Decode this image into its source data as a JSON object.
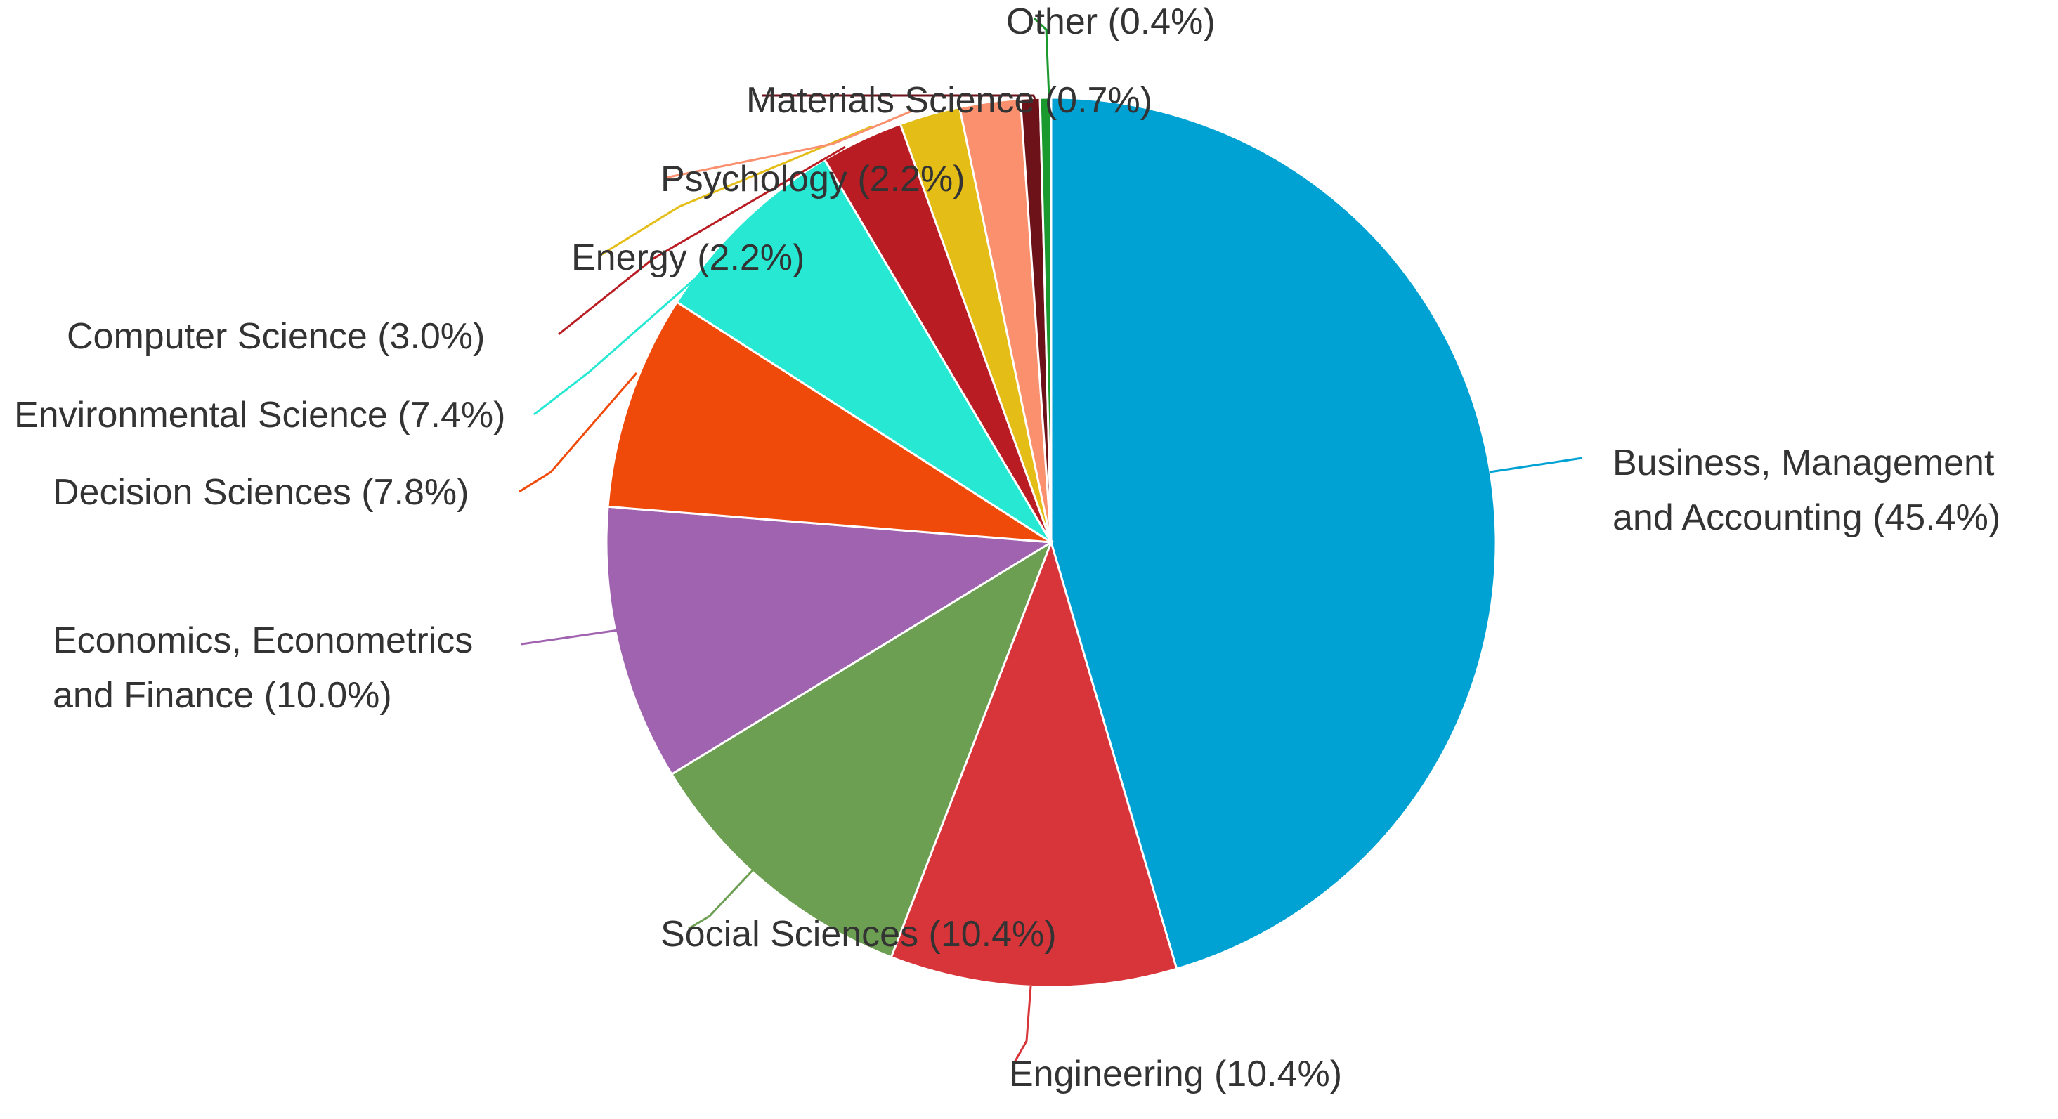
{
  "chart_data": {
    "type": "pie",
    "title": "",
    "unit": "%",
    "start": "top, clockwise",
    "slices": [
      {
        "label": "Business, Management and Accounting (45.4%)",
        "lines": [
          "Business, Management",
          "and Accounting (45.4%)"
        ],
        "value": 45.4,
        "color": "#00A2D3",
        "anchor": "start"
      },
      {
        "label": "Engineering (10.4%)",
        "lines": [
          "Engineering (10.4%)"
        ],
        "value": 10.4,
        "color": "#D7353A",
        "anchor": "end"
      },
      {
        "label": "Social Sciences (10.4%)",
        "lines": [
          "Social Sciences (10.4%)"
        ],
        "value": 10.4,
        "color": "#6C9F51",
        "anchor": "end"
      },
      {
        "label": "Economics, Econometrics and Finance (10.0%)",
        "lines": [
          "Economics, Econometrics",
          "and Finance (10.0%)"
        ],
        "value": 10.0,
        "color": "#A063B0",
        "anchor": "start"
      },
      {
        "label": "Decision Sciences (7.8%)",
        "lines": [
          "Decision Sciences (7.8%)"
        ],
        "value": 7.8,
        "color": "#F04A0A",
        "anchor": "start"
      },
      {
        "label": "Environmental Science (7.4%)",
        "lines": [
          "Environmental Science (7.4%)"
        ],
        "value": 7.4,
        "color": "#27E8D3",
        "anchor": "start"
      },
      {
        "label": "Computer Science (3.0%)",
        "lines": [
          "Computer Science (3.0%)"
        ],
        "value": 3.0,
        "color": "#B91C22",
        "anchor": "start"
      },
      {
        "label": "Energy (2.2%)",
        "lines": [
          "Energy (2.2%)"
        ],
        "value": 2.2,
        "color": "#E4BE16",
        "anchor": "end"
      },
      {
        "label": "Psychology (2.2%)",
        "lines": [
          "Psychology (2.2%)"
        ],
        "value": 2.2,
        "color": "#FA906E",
        "anchor": "end"
      },
      {
        "label": "Materials Science (0.7%)",
        "lines": [
          "Materials Science (0.7%)"
        ],
        "value": 0.7,
        "color": "#6E1219",
        "anchor": "end"
      },
      {
        "label": "Other (0.4%)",
        "lines": [
          "Other (0.4%)"
        ],
        "value": 0.4,
        "color": "#1A9A2E",
        "anchor": "end"
      }
    ]
  }
}
